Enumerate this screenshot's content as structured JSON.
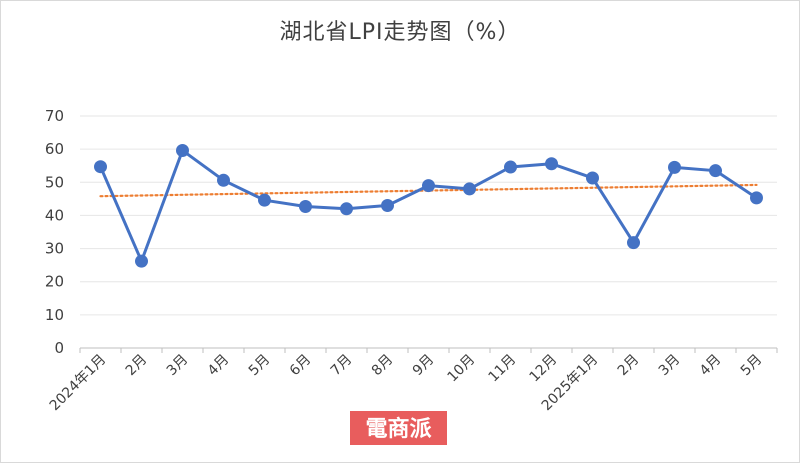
{
  "chart_data": {
    "type": "line",
    "title": "湖北省LPI走势图（%）",
    "categories": [
      "2024年1月",
      "2月",
      "3月",
      "4月",
      "5月",
      "6月",
      "7月",
      "8月",
      "9月",
      "10月",
      "11月",
      "12月",
      "2025年1月",
      "2月",
      "3月",
      "4月",
      "5月"
    ],
    "series": [
      {
        "values": [
          54.7,
          26.2,
          59.6,
          50.6,
          44.6,
          42.7,
          42.0,
          43.0,
          49.0,
          48.0,
          54.6,
          55.6,
          51.3,
          31.8,
          54.5,
          53.5,
          45.3
        ]
      }
    ],
    "trendline": {
      "style": "dotted",
      "start": 45.8,
      "end": 49.2
    },
    "ylim": [
      0,
      70
    ],
    "yticks": [
      0,
      10,
      20,
      30,
      40,
      50,
      60,
      70
    ],
    "grid": true,
    "xlabel": "",
    "ylabel": "",
    "colors": {
      "line": "#4472c4",
      "trend": "#ed7d31",
      "grid": "#e6e6e6"
    }
  },
  "watermark": "電商派"
}
